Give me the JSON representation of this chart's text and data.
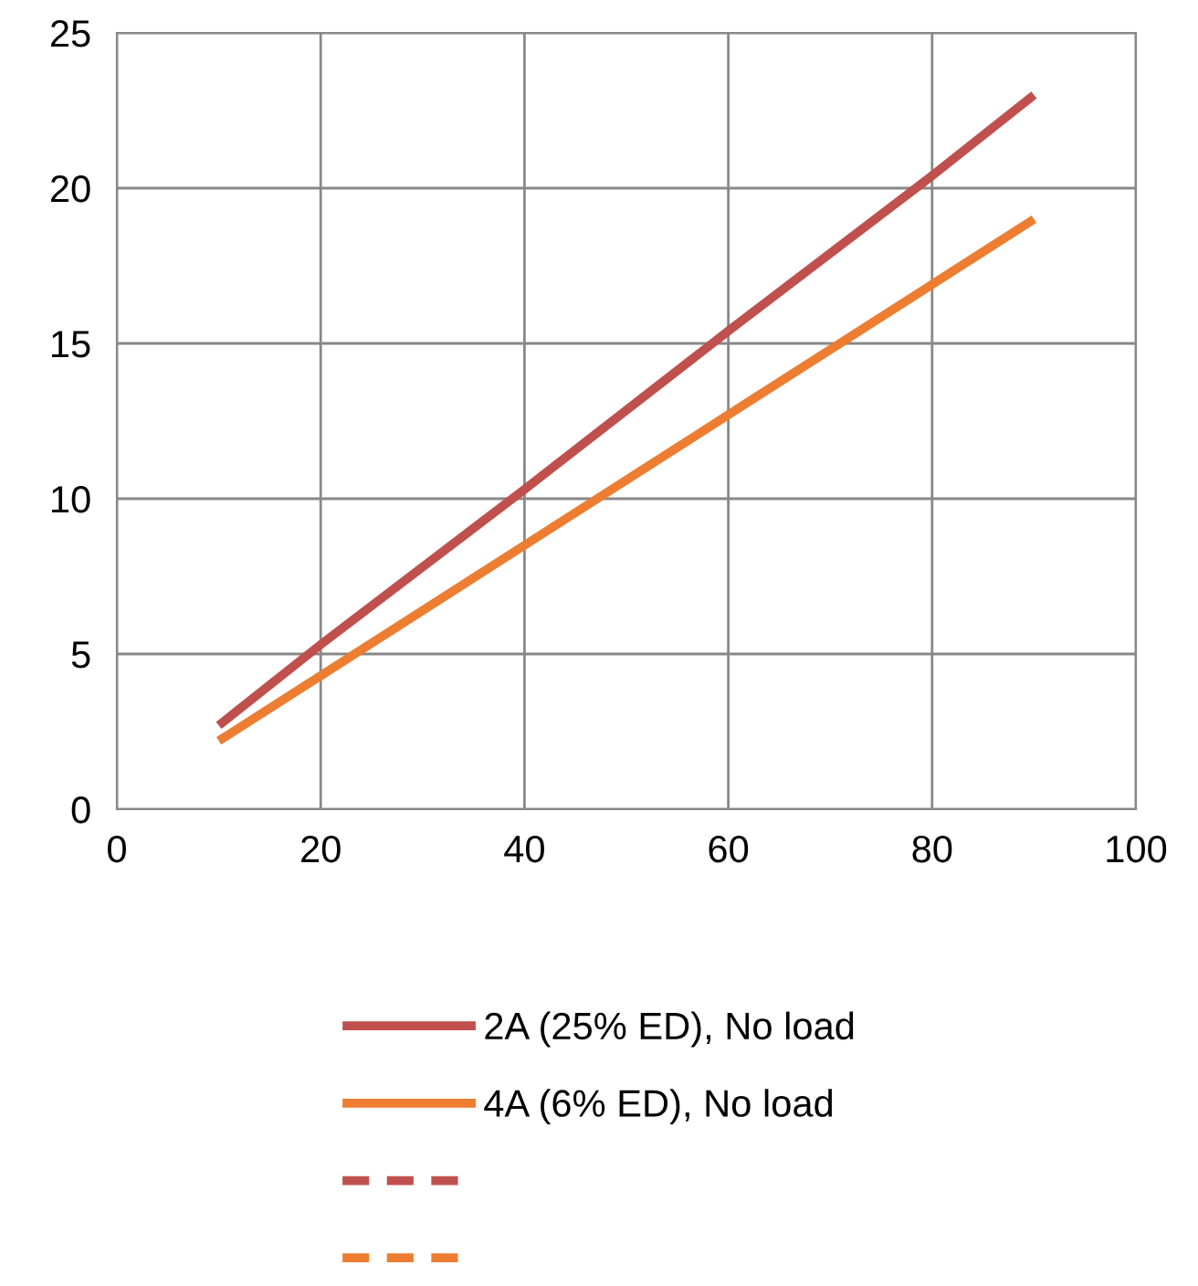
{
  "chart_data": {
    "type": "line",
    "x": [
      10,
      20,
      40,
      60,
      80,
      90
    ],
    "series": [
      {
        "name": "2A (25% ED), No load",
        "color": "#c0504d",
        "values": [
          2.7,
          5.3,
          10.3,
          15.4,
          20.4,
          23.0
        ]
      },
      {
        "name": "4A (6% ED), No load",
        "color": "#ed7d31",
        "values": [
          2.2,
          4.3,
          8.5,
          12.7,
          16.9,
          19.0
        ]
      },
      {
        "color": "#c0504d",
        "line_style": "dashed",
        "values": [
          null,
          null,
          null,
          null,
          null,
          null
        ]
      },
      {
        "color": "#ed7d31",
        "line_style": "dashed",
        "values": [
          null,
          null,
          null,
          null,
          null,
          null
        ]
      }
    ],
    "xlim": [
      0,
      100
    ],
    "xticks": [
      0,
      20,
      40,
      60,
      80,
      100
    ],
    "ylim": [
      0,
      25
    ],
    "yticks": [
      0,
      5,
      10,
      15,
      20,
      25
    ],
    "grid": true,
    "legend": "bottom",
    "line_style": "solid",
    "marker": "none"
  }
}
